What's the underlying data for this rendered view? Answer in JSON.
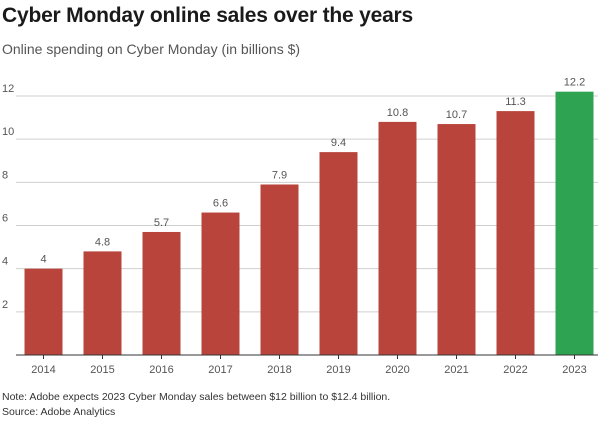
{
  "chart_data": {
    "type": "bar",
    "title": "Cyber Monday online sales over the years",
    "subtitle": "Online spending on Cyber Monday (in billions $)",
    "xlabel": "",
    "ylabel": "",
    "categories": [
      "2014",
      "2015",
      "2016",
      "2017",
      "2018",
      "2019",
      "2020",
      "2021",
      "2022",
      "2023"
    ],
    "values": [
      4,
      4.8,
      5.7,
      6.6,
      7.9,
      9.4,
      10.8,
      10.7,
      11.3,
      12.2
    ],
    "data_labels": [
      "4",
      "4.8",
      "5.7",
      "6.6",
      "7.9",
      "9.4",
      "10.8",
      "10.7",
      "11.3",
      "12.2"
    ],
    "ylim": [
      0,
      12
    ],
    "yticks": [
      2,
      4,
      6,
      8,
      10,
      12
    ],
    "grid": true,
    "colors": {
      "bar": "#b8443b",
      "highlight": "#2ea452",
      "grid": "#cfcfcf",
      "axis": "#333333"
    },
    "highlight_category": "2023"
  },
  "footer": {
    "note": "Note: Adobe expects 2023 Cyber Monday sales between $12 billion to $12.4 billion.",
    "source": "Source: Adobe Analytics"
  }
}
